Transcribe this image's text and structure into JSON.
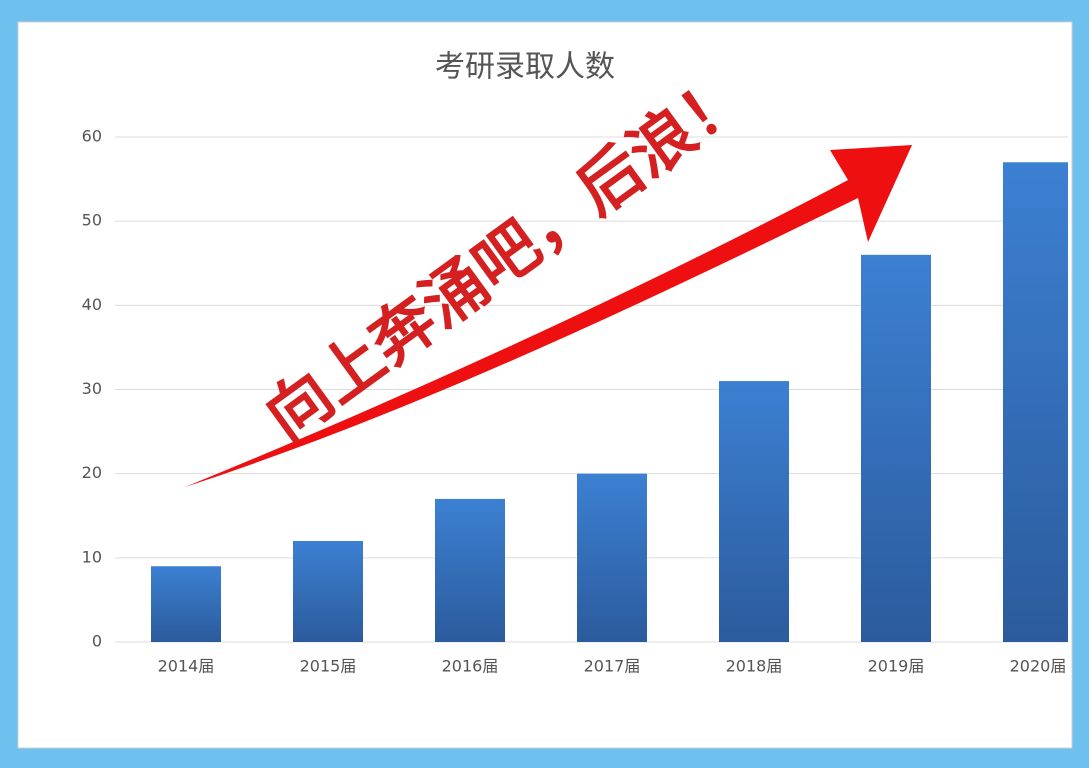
{
  "chart_data": {
    "type": "bar",
    "title": "考研录取人数",
    "annotation": "向上奔涌吧，后浪！",
    "categories": [
      "2014届",
      "2015届",
      "2016届",
      "2017届",
      "2018届",
      "2019届",
      "2020届"
    ],
    "values": [
      9,
      12,
      17,
      20,
      31,
      46,
      57
    ],
    "color": "#3a7cce",
    "ylim": [
      0,
      60
    ],
    "yticks": [
      0,
      10,
      20,
      30,
      40,
      50,
      60
    ],
    "grid": true
  }
}
